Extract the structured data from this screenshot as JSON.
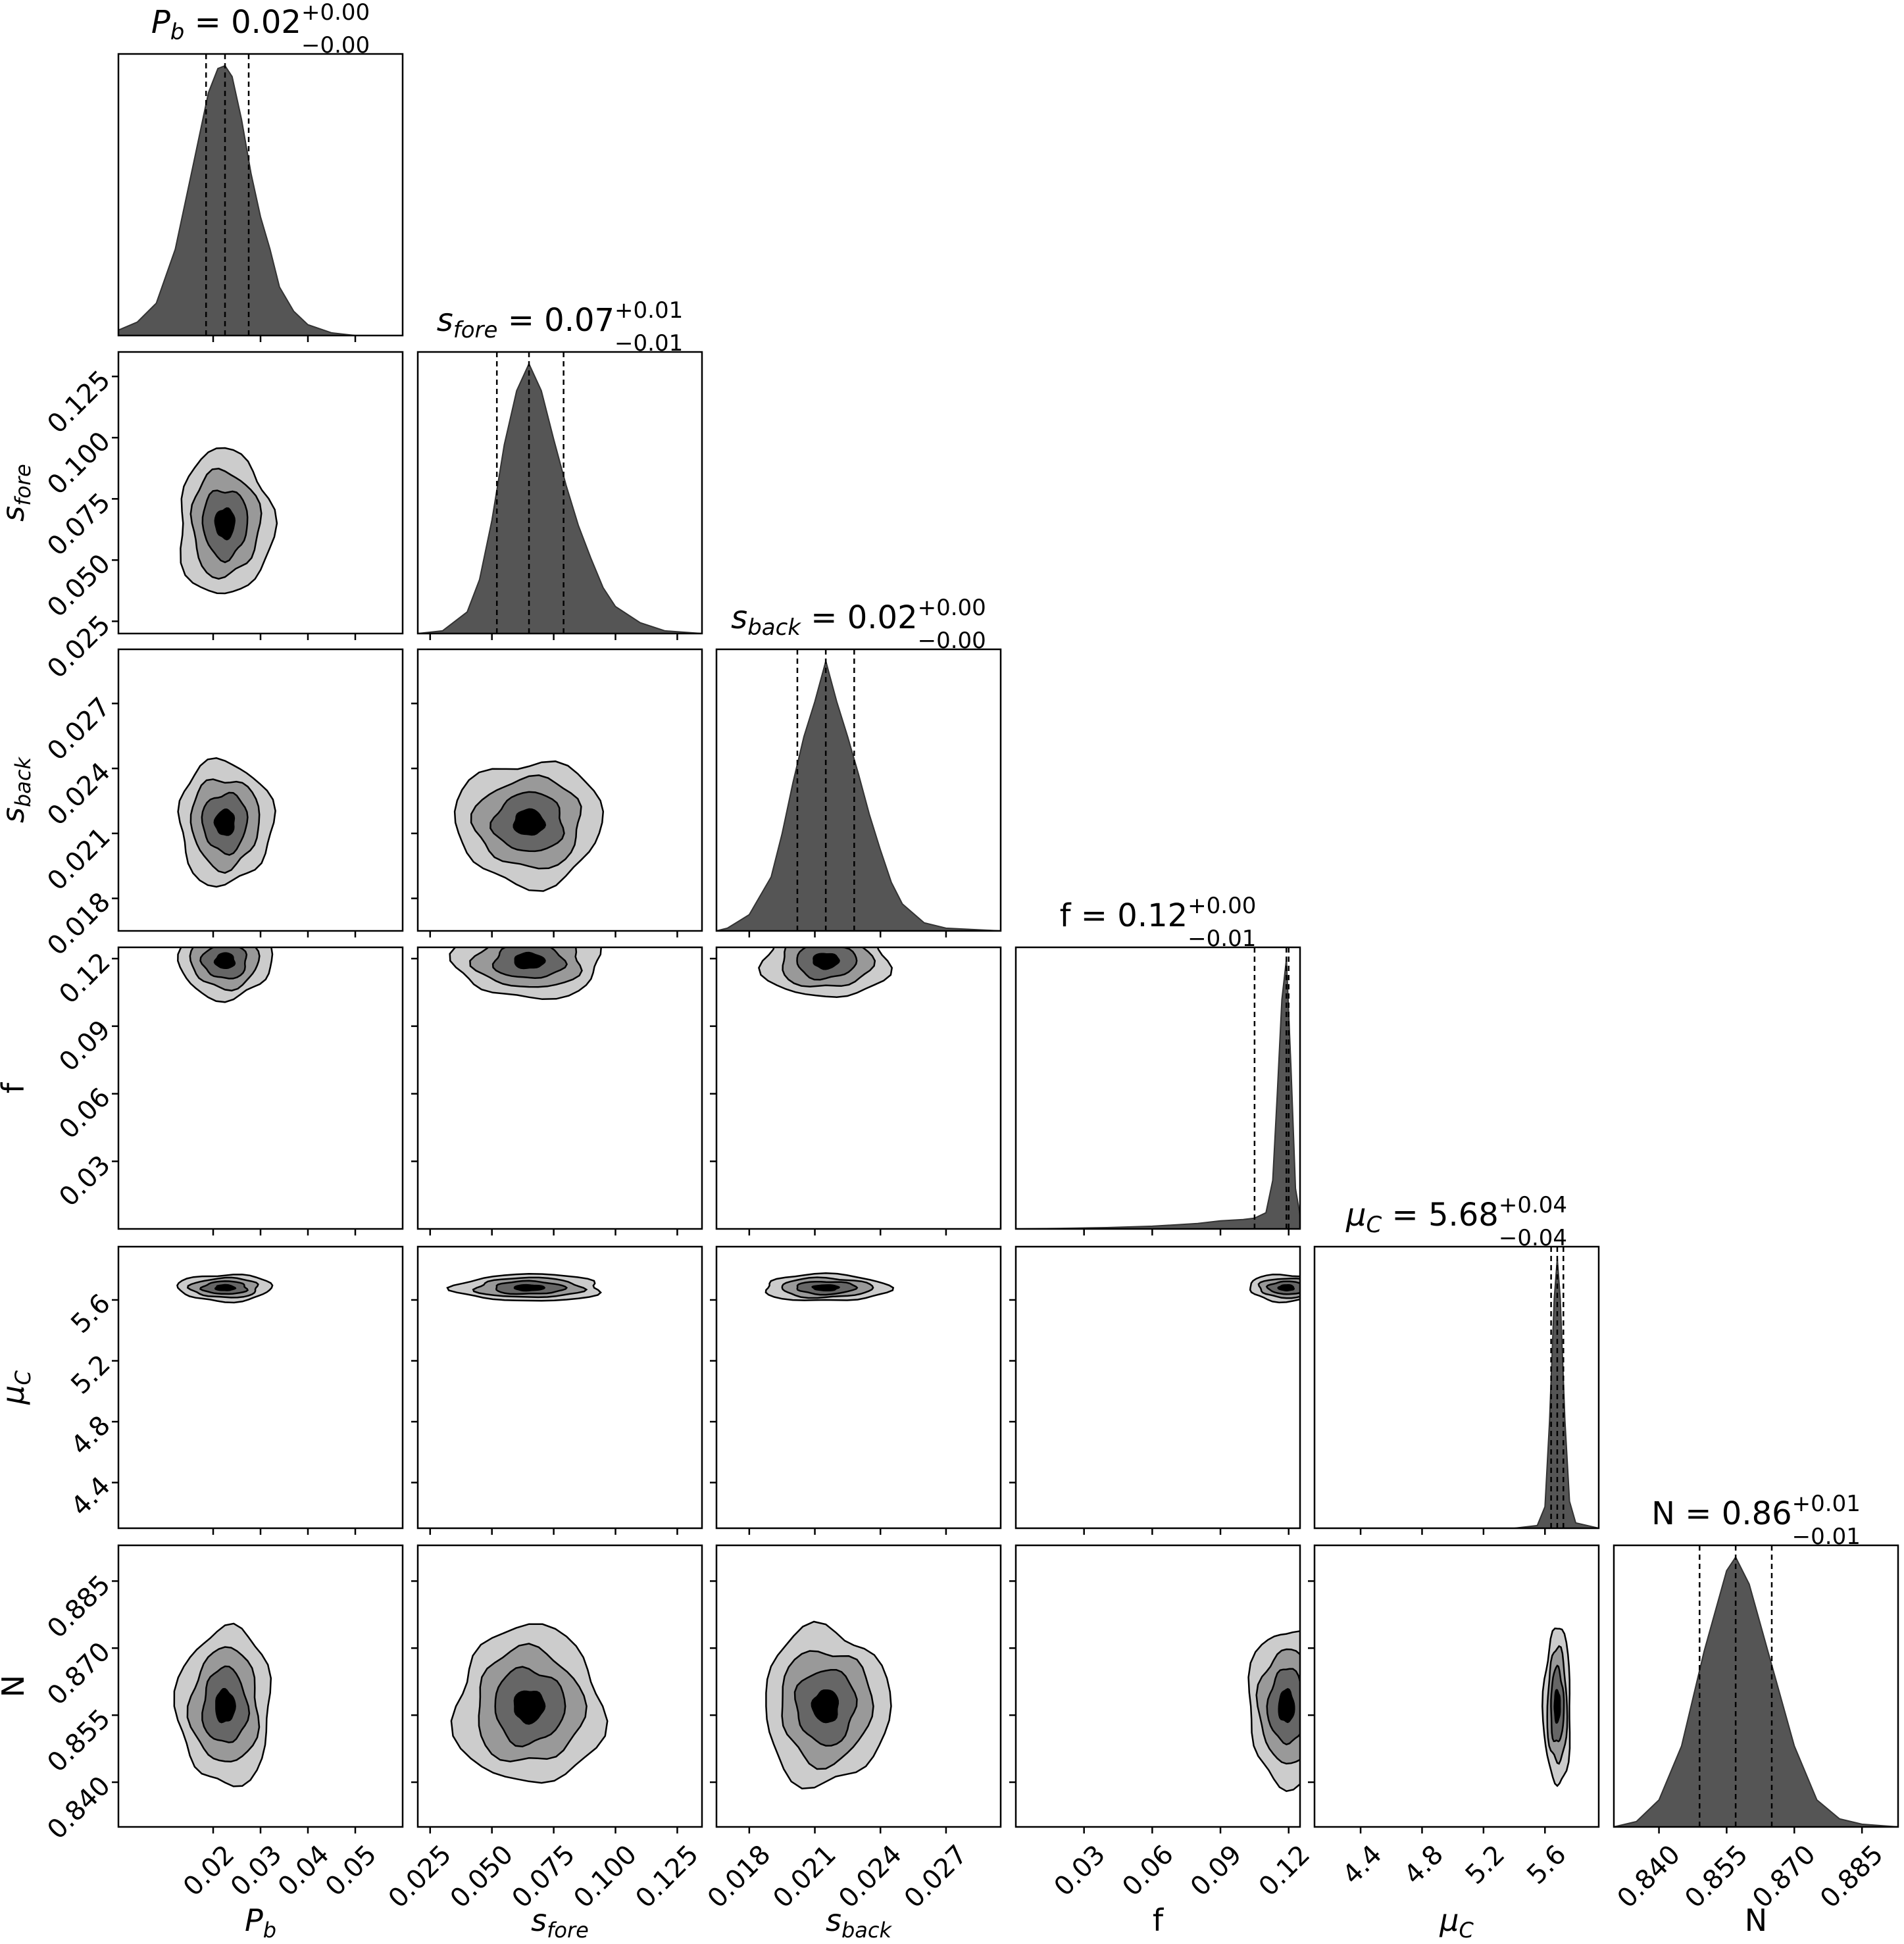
{
  "chart_data": {
    "type": "corner",
    "parameters": [
      {
        "key": "Pb",
        "label": "P",
        "label_sub": "b",
        "range": [
          0.0,
          0.06
        ],
        "ticks": [
          0.02,
          0.03,
          0.04,
          0.05
        ],
        "tick_labels": [
          "0.02",
          "0.03",
          "0.04",
          "0.05"
        ],
        "median": 0.0225,
        "q16": 0.0185,
        "q84": 0.0275,
        "title": {
          "lhs": "P",
          "lhs_sub": "b",
          "value": " = 0.02",
          "plus": "+0.00",
          "minus": "−0.00"
        },
        "hist": {
          "x": [
            0.0,
            0.004,
            0.008,
            0.012,
            0.016,
            0.019,
            0.021,
            0.0225,
            0.024,
            0.026,
            0.028,
            0.03,
            0.032,
            0.034,
            0.037,
            0.04,
            0.045,
            0.05,
            0.06
          ],
          "y": [
            0.02,
            0.05,
            0.12,
            0.32,
            0.65,
            0.9,
            0.99,
            1.0,
            0.96,
            0.8,
            0.6,
            0.44,
            0.32,
            0.18,
            0.09,
            0.04,
            0.01,
            0.0,
            0.0
          ]
        }
      },
      {
        "key": "sfore",
        "label": "s",
        "label_sub": "fore",
        "range": [
          0.02,
          0.135
        ],
        "ticks": [
          0.025,
          0.05,
          0.075,
          0.1,
          0.125
        ],
        "tick_labels": [
          "0.025",
          "0.050",
          "0.075",
          "0.100",
          "0.125"
        ],
        "median": 0.065,
        "q16": 0.052,
        "q84": 0.079,
        "title": {
          "lhs": "s",
          "lhs_sub": "fore",
          "value": " = 0.07",
          "plus": "+0.01",
          "minus": "−0.01"
        },
        "hist": {
          "x": [
            0.02,
            0.03,
            0.04,
            0.045,
            0.05,
            0.055,
            0.06,
            0.065,
            0.07,
            0.075,
            0.08,
            0.085,
            0.09,
            0.095,
            0.1,
            0.11,
            0.12,
            0.135
          ],
          "y": [
            0.0,
            0.01,
            0.08,
            0.2,
            0.42,
            0.7,
            0.9,
            1.0,
            0.9,
            0.72,
            0.55,
            0.4,
            0.28,
            0.17,
            0.1,
            0.04,
            0.01,
            0.0
          ]
        }
      },
      {
        "key": "sback",
        "label": "s",
        "label_sub": "back",
        "range": [
          0.0165,
          0.0295
        ],
        "ticks": [
          0.018,
          0.021,
          0.024,
          0.027
        ],
        "tick_labels": [
          "0.018",
          "0.021",
          "0.024",
          "0.027"
        ],
        "median": 0.0215,
        "q16": 0.0202,
        "q84": 0.0228,
        "title": {
          "lhs": "s",
          "lhs_sub": "back",
          "value": " = 0.02",
          "plus": "+0.00",
          "minus": "−0.00"
        },
        "hist": {
          "x": [
            0.0165,
            0.017,
            0.018,
            0.019,
            0.0195,
            0.02,
            0.0205,
            0.021,
            0.0215,
            0.022,
            0.0225,
            0.023,
            0.0235,
            0.024,
            0.0245,
            0.025,
            0.026,
            0.027,
            0.0295
          ],
          "y": [
            0.0,
            0.01,
            0.06,
            0.2,
            0.36,
            0.55,
            0.72,
            0.85,
            1.0,
            0.85,
            0.72,
            0.58,
            0.43,
            0.3,
            0.18,
            0.1,
            0.03,
            0.01,
            0.0
          ]
        }
      },
      {
        "key": "f",
        "label": "f",
        "label_sub": "",
        "range": [
          0.0,
          0.125
        ],
        "ticks": [
          0.03,
          0.06,
          0.09,
          0.12
        ],
        "tick_labels": [
          "0.03",
          "0.06",
          "0.09",
          "0.12"
        ],
        "median": 0.119,
        "q16": 0.105,
        "q84": 0.12,
        "title": {
          "lhs": "f",
          "lhs_sub": "",
          "value": " = 0.12",
          "plus": "+0.00",
          "minus": "−0.01"
        },
        "hist": {
          "x": [
            0.0,
            0.02,
            0.04,
            0.06,
            0.08,
            0.09,
            0.1,
            0.105,
            0.11,
            0.113,
            0.115,
            0.117,
            0.119,
            0.121,
            0.123,
            0.125
          ],
          "y": [
            0.0,
            0.002,
            0.005,
            0.01,
            0.02,
            0.03,
            0.035,
            0.04,
            0.06,
            0.18,
            0.5,
            0.85,
            1.0,
            0.6,
            0.15,
            0.05
          ]
        }
      },
      {
        "key": "muC",
        "label": "μ",
        "label_sub": "C",
        "range": [
          4.1,
          5.95
        ],
        "ticks": [
          4.4,
          4.8,
          5.2,
          5.6
        ],
        "tick_labels": [
          "4.4",
          "4.8",
          "5.2",
          "5.6"
        ],
        "median": 5.68,
        "q16": 5.64,
        "q84": 5.72,
        "title": {
          "lhs": "μ",
          "lhs_sub": "C",
          "value": " = 5.68",
          "plus": "+0.04",
          "minus": "−0.04"
        },
        "hist": {
          "x": [
            4.1,
            5.4,
            5.55,
            5.6,
            5.63,
            5.66,
            5.68,
            5.7,
            5.73,
            5.76,
            5.8,
            5.95
          ],
          "y": [
            0.0,
            0.0,
            0.01,
            0.08,
            0.4,
            0.85,
            1.0,
            0.85,
            0.4,
            0.1,
            0.02,
            0.0
          ]
        }
      },
      {
        "key": "N",
        "label": "N",
        "label_sub": "",
        "range": [
          0.83,
          0.893
        ],
        "ticks": [
          0.84,
          0.855,
          0.87,
          0.885
        ],
        "tick_labels": [
          "0.840",
          "0.855",
          "0.870",
          "0.885"
        ],
        "median": 0.857,
        "q16": 0.849,
        "q84": 0.865,
        "title": {
          "lhs": "N",
          "lhs_sub": "",
          "value": " = 0.86",
          "plus": "+0.01",
          "minus": "−0.01"
        },
        "hist": {
          "x": [
            0.83,
            0.835,
            0.84,
            0.845,
            0.85,
            0.855,
            0.857,
            0.86,
            0.865,
            0.87,
            0.875,
            0.88,
            0.885,
            0.893
          ],
          "y": [
            0.0,
            0.02,
            0.1,
            0.3,
            0.65,
            0.95,
            1.0,
            0.9,
            0.6,
            0.3,
            0.1,
            0.03,
            0.01,
            0.0
          ]
        }
      }
    ],
    "contour_levels": 4,
    "contour_fills": [
      "#cccccc",
      "#999999",
      "#666666",
      "#000000"
    ]
  }
}
